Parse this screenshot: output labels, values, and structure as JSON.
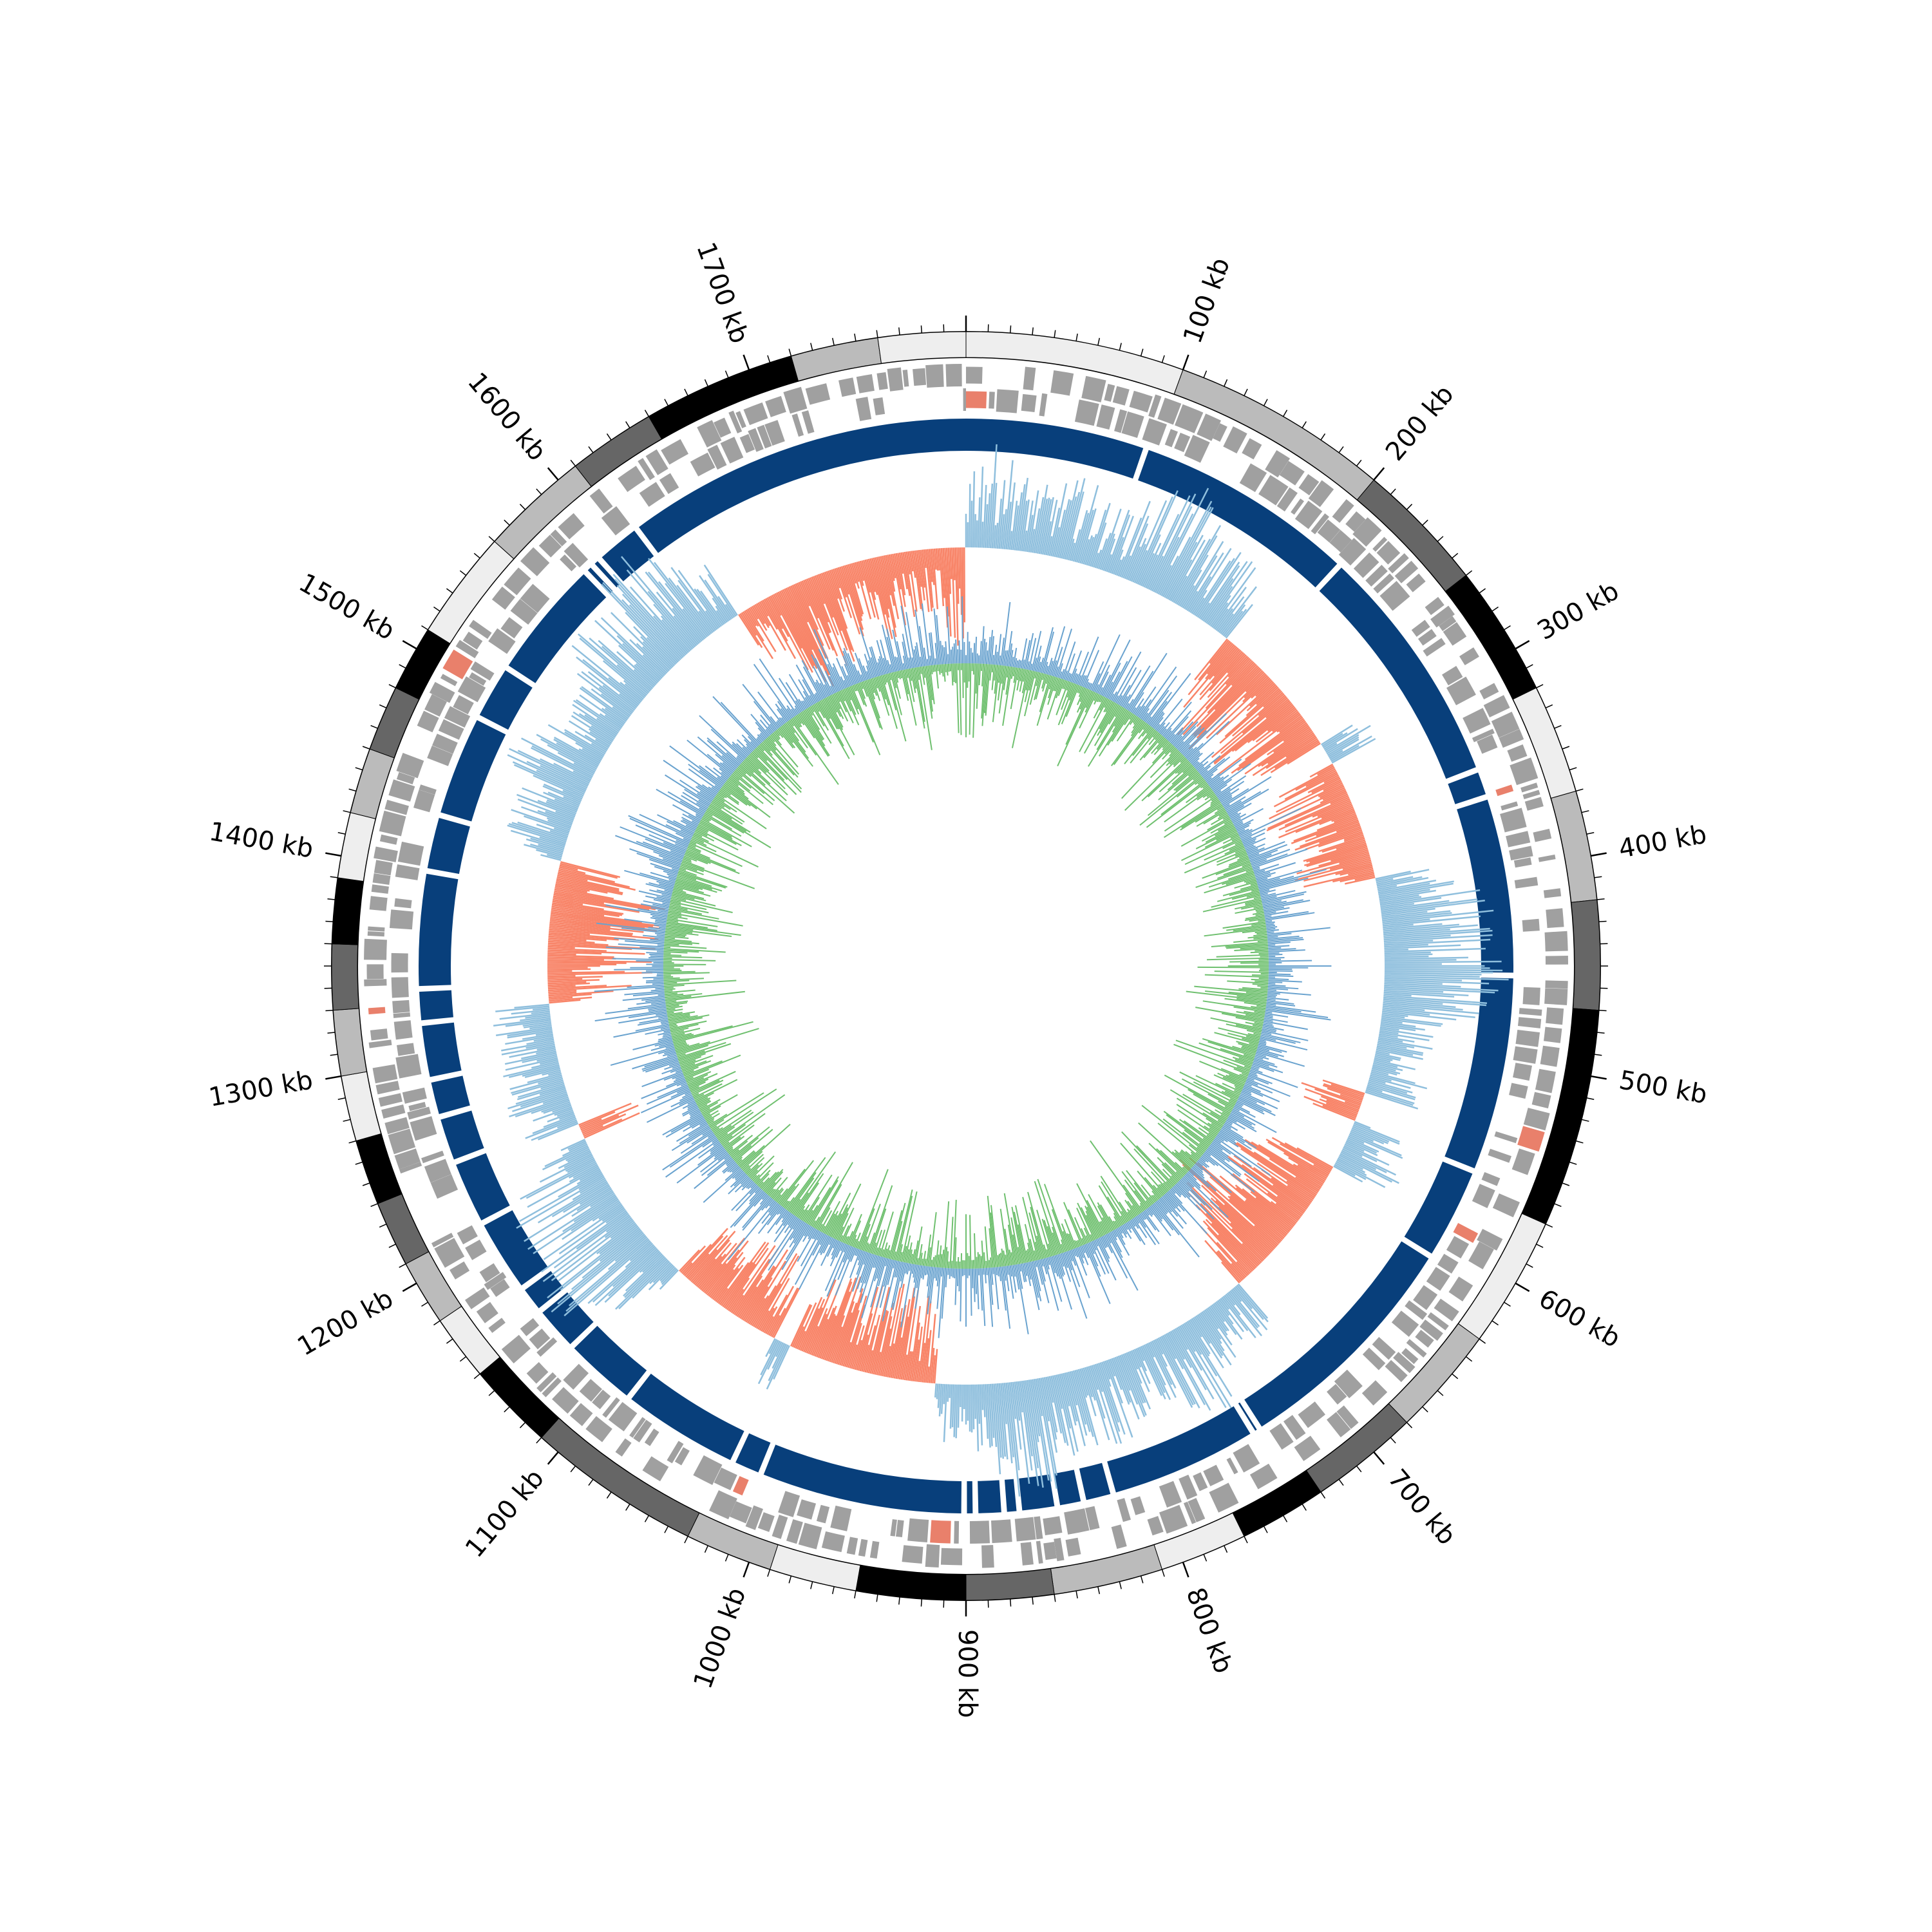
{
  "genome": {
    "length_kb": 1800,
    "tick_labels": [
      "100 kb",
      "200 kb",
      "300 kb",
      "400 kb",
      "500 kb",
      "600 kb",
      "700 kb",
      "800 kb",
      "900 kb",
      "1000 kb",
      "1100 kb",
      "1200 kb",
      "1300 kb",
      "1400 kb",
      "1500 kb",
      "1600 kb",
      "1700 kb"
    ]
  },
  "colors": {
    "band_shades": [
      "#eeeeee",
      "#bbbbbb",
      "#666666",
      "#000000"
    ],
    "gene_gray": "#a0a0a0",
    "gene_red": "#e9806b",
    "contig_blue": "#083f7b",
    "gc_blue": "#8fbfdd",
    "gc_red": "#f88468",
    "skew_blue": "#6aa3cf",
    "skew_green": "#6fc06f"
  },
  "tracks": {
    "ideogram_bands_kb": [
      [
        0,
        100,
        0
      ],
      [
        100,
        200,
        1
      ],
      [
        200,
        260,
        2
      ],
      [
        260,
        320,
        3
      ],
      [
        320,
        370,
        0
      ],
      [
        370,
        420,
        1
      ],
      [
        420,
        470,
        2
      ],
      [
        470,
        570,
        3
      ],
      [
        570,
        630,
        0
      ],
      [
        630,
        680,
        1
      ],
      [
        680,
        730,
        2
      ],
      [
        730,
        770,
        3
      ],
      [
        770,
        810,
        0
      ],
      [
        810,
        860,
        1
      ],
      [
        860,
        900,
        2
      ],
      [
        900,
        950,
        3
      ],
      [
        950,
        990,
        0
      ],
      [
        990,
        1030,
        1
      ],
      [
        1030,
        1110,
        2
      ],
      [
        1110,
        1150,
        3
      ],
      [
        1150,
        1180,
        0
      ],
      [
        1180,
        1210,
        1
      ],
      [
        1210,
        1240,
        2
      ],
      [
        1240,
        1270,
        3
      ],
      [
        1270,
        1300,
        0
      ],
      [
        1300,
        1330,
        1
      ],
      [
        1330,
        1360,
        2
      ],
      [
        1360,
        1390,
        3
      ],
      [
        1390,
        1420,
        0
      ],
      [
        1420,
        1450,
        1
      ],
      [
        1450,
        1480,
        2
      ],
      [
        1480,
        1510,
        3
      ],
      [
        1510,
        1560,
        0
      ],
      [
        1560,
        1610,
        1
      ],
      [
        1610,
        1650,
        2
      ],
      [
        1650,
        1680,
        3
      ],
      [
        1680,
        1720,
        3
      ],
      [
        1720,
        1760,
        1
      ],
      [
        1760,
        1800,
        0
      ]
    ],
    "contig_gaps_kb": [
      96,
      215,
      345,
      360,
      455,
      560,
      610,
      738,
      742,
      822,
      838,
      852,
      872,
      880,
      895,
      901,
      1010,
      1026,
      1090,
      1130,
      1155,
      1170,
      1210,
      1245,
      1270,
      1290,
      1320,
      1338,
      1400,
      1430,
      1485,
      1515,
      1580,
      1585,
      1590,
      1615
    ]
  }
}
